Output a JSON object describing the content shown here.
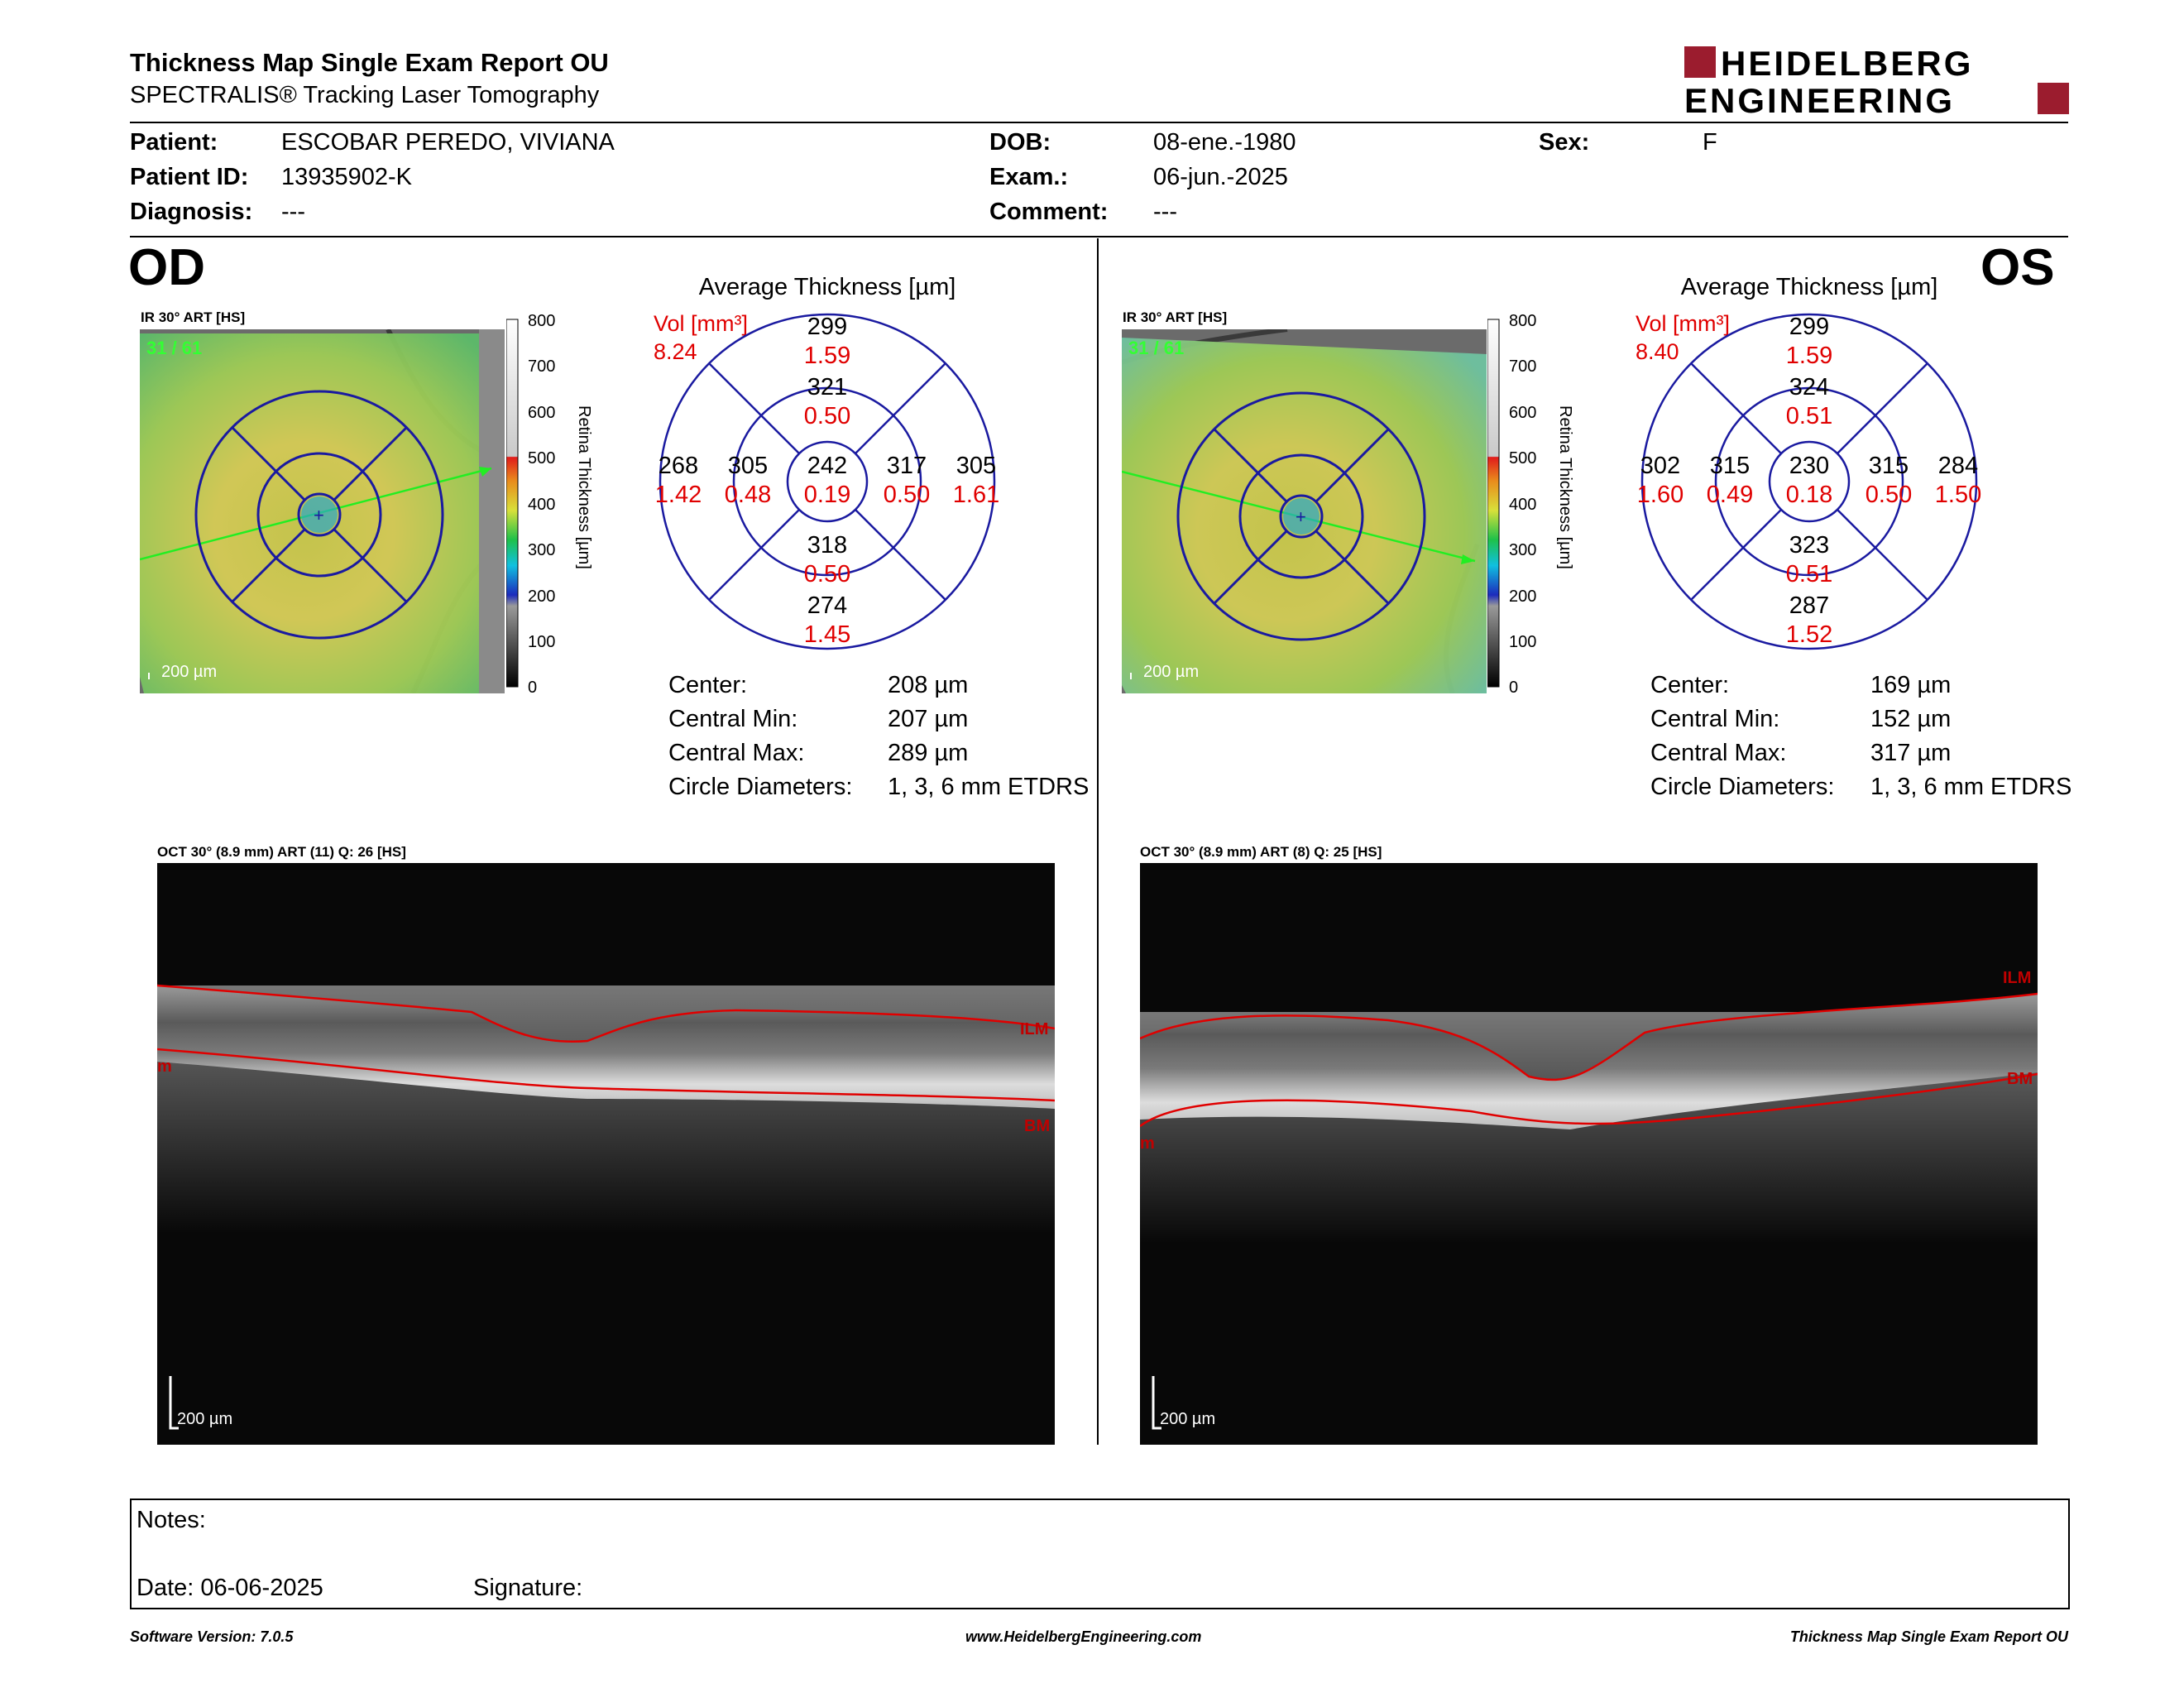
{
  "header": {
    "title": "Thickness Map Single Exam Report OU",
    "subtitle": "SPECTRALIS® Tracking Laser Tomography",
    "logo_line1": "HEIDELBERG",
    "logo_line2": "ENGINEERING"
  },
  "patient": {
    "patient_label": "Patient:",
    "patient_value": "ESCOBAR PEREDO, VIVIANA",
    "id_label": "Patient ID:",
    "id_value": "13935902-K",
    "diagnosis_label": "Diagnosis:",
    "diagnosis_value": "---",
    "dob_label": "DOB:",
    "dob_value": "08-ene.-1980",
    "exam_label": "Exam.:",
    "exam_value": "06-jun.-2025",
    "comment_label": "Comment:",
    "comment_value": "---",
    "sex_label": "Sex:",
    "sex_value": "F"
  },
  "colorbar": {
    "ticks": [
      "800",
      "700",
      "600",
      "500",
      "400",
      "300",
      "200",
      "100",
      "0"
    ],
    "label": "Retina   Thickness [µm]"
  },
  "od": {
    "eye_label": "OD",
    "ir_caption": "IR 30° ART [HS]",
    "ir_counter": "31 / 61",
    "scale": "200 µm",
    "grid_title": "Average Thickness [µm]",
    "vol_label": "Vol [mm³]",
    "vol_value": "8.24",
    "sectors": {
      "outer_sup": [
        "299",
        "1.59"
      ],
      "inner_sup": [
        "321",
        "0.50"
      ],
      "outer_temp": [
        "268",
        "1.42"
      ],
      "inner_temp": [
        "305",
        "0.48"
      ],
      "center": [
        "242",
        "0.19"
      ],
      "inner_nas": [
        "317",
        "0.50"
      ],
      "outer_nas": [
        "305",
        "1.61"
      ],
      "inner_inf": [
        "318",
        "0.50"
      ],
      "outer_inf": [
        "274",
        "1.45"
      ]
    },
    "stats": [
      {
        "label": "Center:",
        "value": "208 µm"
      },
      {
        "label": "Central Min:",
        "value": "207 µm"
      },
      {
        "label": "Central Max:",
        "value": "289 µm"
      },
      {
        "label": "Circle Diameters:",
        "value": "1, 3, 6 mm ETDRS"
      }
    ],
    "oct_caption": "OCT 30° (8.9 mm) ART (11) Q: 26 [HS]",
    "oct_ilm": "ILM",
    "oct_bm": "BM",
    "oct_edge": "m",
    "oct_scale": "200 µm"
  },
  "os": {
    "eye_label": "OS",
    "ir_caption": "IR 30° ART [HS]",
    "ir_counter": "31 / 61",
    "scale": "200 µm",
    "grid_title": "Average Thickness [µm]",
    "vol_label": "Vol [mm³]",
    "vol_value": "8.40",
    "sectors": {
      "outer_sup": [
        "299",
        "1.59"
      ],
      "inner_sup": [
        "324",
        "0.51"
      ],
      "outer_temp": [
        "302",
        "1.60"
      ],
      "inner_temp": [
        "315",
        "0.49"
      ],
      "center": [
        "230",
        "0.18"
      ],
      "inner_nas": [
        "315",
        "0.50"
      ],
      "outer_nas": [
        "284",
        "1.50"
      ],
      "inner_inf": [
        "323",
        "0.51"
      ],
      "outer_inf": [
        "287",
        "1.52"
      ]
    },
    "stats": [
      {
        "label": "Center:",
        "value": "169 µm"
      },
      {
        "label": "Central Min:",
        "value": "152 µm"
      },
      {
        "label": "Central Max:",
        "value": "317 µm"
      },
      {
        "label": "Circle Diameters:",
        "value": "1, 3, 6 mm ETDRS"
      }
    ],
    "oct_caption": "OCT 30° (8.9 mm) ART (8) Q: 25 [HS]",
    "oct_ilm": "ILM",
    "oct_bm": "BM",
    "oct_edge": "m",
    "oct_scale": "200 µm"
  },
  "notes": {
    "notes_label": "Notes:",
    "date_label": "Date: 06-06-2025",
    "signature_label": "Signature:"
  },
  "footer": {
    "version": "Software Version: 7.0.5",
    "url": "www.HeidelbergEngineering.com",
    "report": "Thickness Map Single Exam Report OU"
  },
  "colors": {
    "brand": "#9b1c2e",
    "grid_line": "#1a1aa0",
    "volume_text": "#e00000",
    "oct_boundary": "#e00000"
  }
}
